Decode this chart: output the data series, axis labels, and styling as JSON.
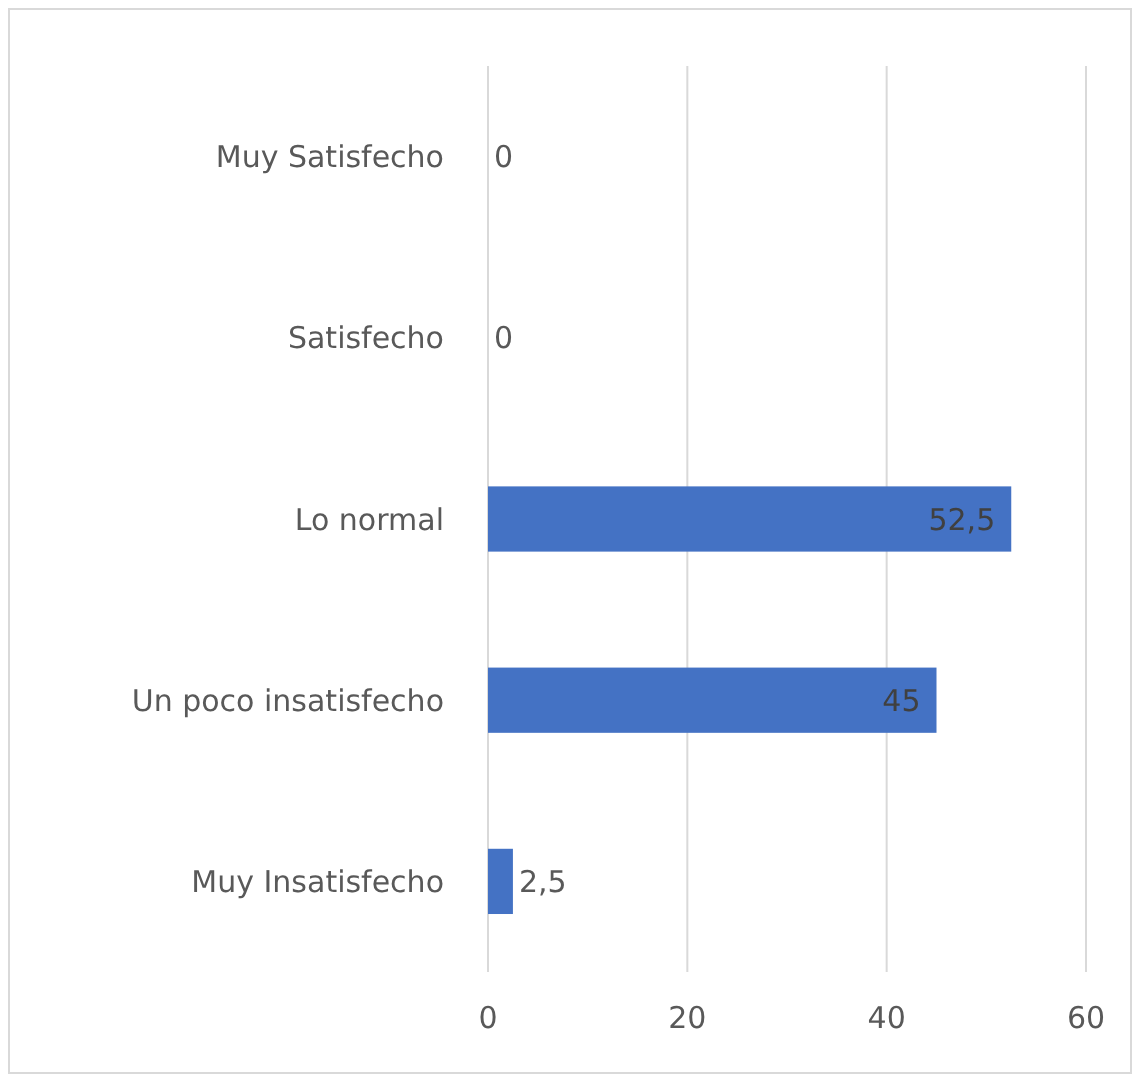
{
  "chart_data": {
    "type": "bar",
    "orientation": "horizontal",
    "categories": [
      "Muy Satisfecho",
      "Satisfecho",
      "Lo normal",
      "Un poco insatisfecho",
      "Muy Insatisfecho"
    ],
    "values": [
      0,
      0,
      52.5,
      45,
      2.5
    ],
    "value_labels": [
      "0",
      "0",
      "52,5",
      "45",
      "2,5"
    ],
    "color": "#4472c4",
    "xlim": [
      0,
      60
    ],
    "xticks": [
      0,
      20,
      40,
      60
    ],
    "grid": "x"
  }
}
